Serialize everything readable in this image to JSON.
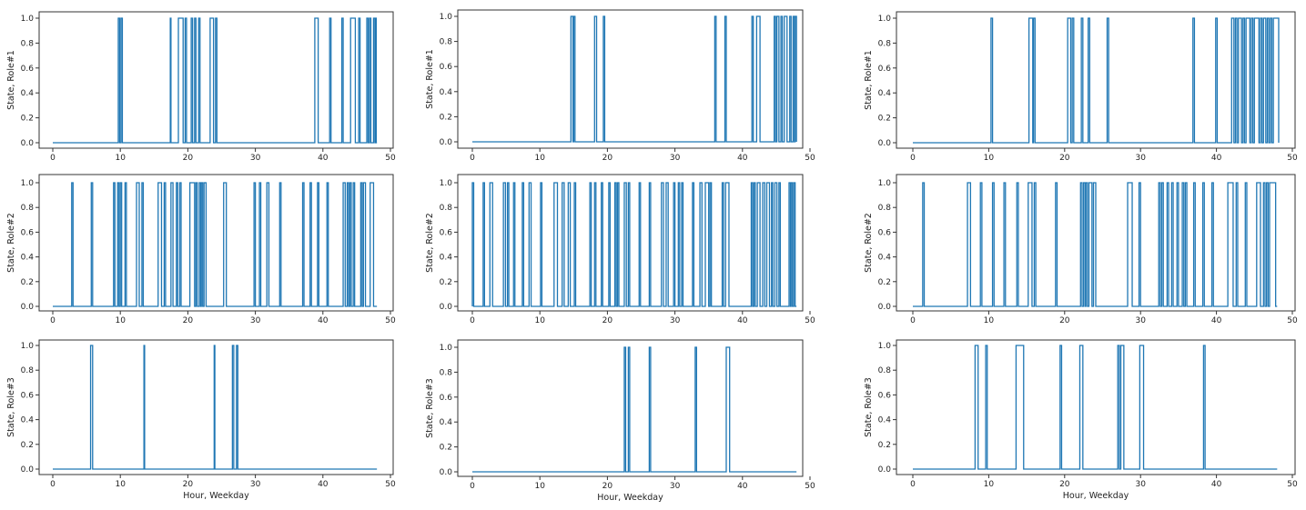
{
  "style": {
    "line_color": "#1f77b4",
    "axis_color": "#333333",
    "background": "#ffffff"
  },
  "chart_data": [
    {
      "type": "line",
      "step": "post",
      "ylabel": "State, Role#1",
      "xlabel": "",
      "xlim": [
        0,
        50
      ],
      "ylim": [
        0,
        1
      ],
      "xticks": [
        "0",
        "10",
        "20",
        "30",
        "40",
        "50"
      ],
      "yticks": [
        "0.0",
        "0.2",
        "0.4",
        "0.6",
        "0.8",
        "1.0"
      ],
      "grid": false,
      "series": [
        {
          "on_intervals": [
            [
              9.7,
              9.9
            ],
            [
              10.1,
              10.3
            ],
            [
              17.4,
              17.5
            ],
            [
              18.6,
              19.3
            ],
            [
              19.6,
              19.8
            ],
            [
              20.5,
              20.7
            ],
            [
              21.0,
              21.2
            ],
            [
              21.6,
              21.8
            ],
            [
              23.3,
              23.8
            ],
            [
              24.1,
              24.3
            ],
            [
              38.8,
              39.3
            ],
            [
              41.0,
              41.2
            ],
            [
              42.8,
              43.0
            ],
            [
              44.1,
              44.8
            ],
            [
              45.3,
              45.5
            ],
            [
              46.5,
              46.7
            ],
            [
              46.9,
              47.1
            ],
            [
              47.5,
              47.7
            ],
            [
              47.8,
              47.9
            ]
          ]
        }
      ]
    },
    {
      "type": "line",
      "step": "post",
      "ylabel": "State, Role#1",
      "xlabel": "",
      "xlim": [
        0,
        50
      ],
      "ylim": [
        0,
        1
      ],
      "xticks": [
        "0",
        "10",
        "20",
        "30",
        "40",
        "50"
      ],
      "yticks": [
        "0.0",
        "0.2",
        "0.4",
        "0.6",
        "0.8",
        "1.0"
      ],
      "grid": false,
      "series": [
        {
          "on_intervals": [
            [
              14.6,
              14.9
            ],
            [
              15.0,
              15.2
            ],
            [
              18.1,
              18.4
            ],
            [
              19.4,
              19.6
            ],
            [
              35.9,
              36.1
            ],
            [
              37.4,
              37.6
            ],
            [
              41.4,
              41.6
            ],
            [
              42.1,
              42.6
            ],
            [
              44.7,
              44.9
            ],
            [
              45.1,
              45.4
            ],
            [
              45.7,
              45.9
            ],
            [
              46.2,
              46.6
            ],
            [
              47.0,
              47.2
            ],
            [
              47.5,
              47.7
            ],
            [
              47.8,
              48.0
            ]
          ]
        }
      ]
    },
    {
      "type": "line",
      "step": "post",
      "ylabel": "State, Role#1",
      "xlabel": "",
      "xlim": [
        0,
        50
      ],
      "ylim": [
        0,
        1
      ],
      "xticks": [
        "0",
        "10",
        "20",
        "30",
        "40",
        "50"
      ],
      "yticks": [
        "0.0",
        "0.2",
        "0.4",
        "0.6",
        "0.8",
        "1.0"
      ],
      "grid": false,
      "series": [
        {
          "on_intervals": [
            [
              10.3,
              10.5
            ],
            [
              15.3,
              15.8
            ],
            [
              15.9,
              16.1
            ],
            [
              20.4,
              20.8
            ],
            [
              21.0,
              21.2
            ],
            [
              22.2,
              22.4
            ],
            [
              23.1,
              23.3
            ],
            [
              25.6,
              25.8
            ],
            [
              36.9,
              37.1
            ],
            [
              39.9,
              40.1
            ],
            [
              42.0,
              42.3
            ],
            [
              42.5,
              42.7
            ],
            [
              42.9,
              43.3
            ],
            [
              43.5,
              43.7
            ],
            [
              43.9,
              44.4
            ],
            [
              44.6,
              44.8
            ],
            [
              45.0,
              45.6
            ],
            [
              45.8,
              46.0
            ],
            [
              46.2,
              46.5
            ],
            [
              46.7,
              46.9
            ],
            [
              47.1,
              47.3
            ],
            [
              47.5,
              48.2
            ]
          ]
        }
      ]
    },
    {
      "type": "line",
      "step": "post",
      "ylabel": "State, Role#2",
      "xlabel": "",
      "xlim": [
        0,
        50
      ],
      "ylim": [
        0,
        1
      ],
      "xticks": [
        "0",
        "10",
        "20",
        "30",
        "40",
        "50"
      ],
      "yticks": [
        "0.0",
        "0.2",
        "0.4",
        "0.6",
        "0.8",
        "1.0"
      ],
      "grid": false,
      "series": [
        {
          "on_intervals": [
            [
              2.8,
              3.0
            ],
            [
              5.7,
              5.9
            ],
            [
              9.0,
              9.2
            ],
            [
              9.6,
              9.8
            ],
            [
              10.0,
              10.2
            ],
            [
              10.7,
              10.9
            ],
            [
              12.4,
              12.8
            ],
            [
              13.2,
              13.4
            ],
            [
              15.6,
              16.1
            ],
            [
              16.5,
              16.7
            ],
            [
              17.5,
              17.8
            ],
            [
              18.3,
              18.5
            ],
            [
              18.8,
              19.0
            ],
            [
              20.3,
              21.0
            ],
            [
              21.2,
              21.4
            ],
            [
              21.7,
              21.9
            ],
            [
              22.0,
              22.2
            ],
            [
              22.4,
              22.7
            ],
            [
              25.3,
              25.7
            ],
            [
              29.8,
              30.0
            ],
            [
              30.6,
              30.8
            ],
            [
              31.7,
              32.0
            ],
            [
              33.6,
              33.8
            ],
            [
              37.0,
              37.2
            ],
            [
              38.1,
              38.3
            ],
            [
              39.2,
              39.4
            ],
            [
              40.6,
              40.8
            ],
            [
              43.0,
              43.3
            ],
            [
              43.6,
              43.8
            ],
            [
              44.0,
              44.2
            ],
            [
              44.5,
              44.7
            ],
            [
              45.6,
              45.8
            ],
            [
              46.0,
              46.3
            ],
            [
              47.0,
              47.5
            ]
          ]
        }
      ]
    },
    {
      "type": "line",
      "step": "post",
      "ylabel": "State, Role#2",
      "xlabel": "",
      "xlim": [
        0,
        50
      ],
      "ylim": [
        0,
        1
      ],
      "xticks": [
        "0",
        "10",
        "20",
        "30",
        "40",
        "50"
      ],
      "yticks": [
        "0.0",
        "0.2",
        "0.4",
        "0.6",
        "0.8",
        "1.0"
      ],
      "grid": false,
      "series": [
        {
          "on_intervals": [
            [
              0.0,
              0.2
            ],
            [
              1.6,
              1.8
            ],
            [
              2.6,
              3.0
            ],
            [
              4.6,
              4.9
            ],
            [
              5.2,
              5.4
            ],
            [
              6.1,
              6.3
            ],
            [
              7.4,
              7.6
            ],
            [
              8.4,
              8.7
            ],
            [
              10.1,
              10.3
            ],
            [
              12.1,
              12.6
            ],
            [
              13.3,
              13.6
            ],
            [
              14.2,
              14.5
            ],
            [
              15.1,
              15.3
            ],
            [
              17.4,
              17.6
            ],
            [
              18.1,
              18.3
            ],
            [
              19.1,
              19.3
            ],
            [
              20.2,
              20.4
            ],
            [
              21.1,
              21.3
            ],
            [
              21.5,
              21.7
            ],
            [
              22.5,
              22.8
            ],
            [
              23.1,
              23.3
            ],
            [
              24.7,
              24.9
            ],
            [
              26.2,
              26.4
            ],
            [
              28.0,
              28.3
            ],
            [
              28.7,
              29.0
            ],
            [
              29.8,
              30.0
            ],
            [
              30.5,
              30.7
            ],
            [
              31.0,
              31.2
            ],
            [
              32.6,
              32.8
            ],
            [
              33.7,
              34.0
            ],
            [
              34.5,
              35.0
            ],
            [
              35.2,
              35.4
            ],
            [
              37.0,
              37.2
            ],
            [
              37.5,
              38.0
            ],
            [
              41.3,
              41.5
            ],
            [
              41.7,
              41.9
            ],
            [
              42.2,
              42.6
            ],
            [
              43.0,
              43.3
            ],
            [
              43.6,
              44.0
            ],
            [
              44.3,
              44.5
            ],
            [
              44.8,
              45.1
            ],
            [
              45.4,
              45.6
            ],
            [
              46.9,
              47.1
            ],
            [
              47.2,
              47.4
            ],
            [
              47.6,
              47.8
            ]
          ]
        }
      ]
    },
    {
      "type": "line",
      "step": "post",
      "ylabel": "State, Role#2",
      "xlabel": "",
      "xlim": [
        0,
        50
      ],
      "ylim": [
        0,
        1
      ],
      "xticks": [
        "0",
        "10",
        "20",
        "30",
        "40",
        "50"
      ],
      "yticks": [
        "0.0",
        "0.2",
        "0.4",
        "0.6",
        "0.8",
        "1.0"
      ],
      "grid": false,
      "series": [
        {
          "on_intervals": [
            [
              1.3,
              1.5
            ],
            [
              7.2,
              7.6
            ],
            [
              8.9,
              9.1
            ],
            [
              10.5,
              10.7
            ],
            [
              12.0,
              12.2
            ],
            [
              13.7,
              13.9
            ],
            [
              15.2,
              15.7
            ],
            [
              16.0,
              16.2
            ],
            [
              18.8,
              19.0
            ],
            [
              22.1,
              22.3
            ],
            [
              22.5,
              22.7
            ],
            [
              22.8,
              23.0
            ],
            [
              23.2,
              23.6
            ],
            [
              23.8,
              24.1
            ],
            [
              28.3,
              28.9
            ],
            [
              29.8,
              30.0
            ],
            [
              32.4,
              32.6
            ],
            [
              32.8,
              33.0
            ],
            [
              33.5,
              33.7
            ],
            [
              34.1,
              34.3
            ],
            [
              34.8,
              35.0
            ],
            [
              35.5,
              35.7
            ],
            [
              35.9,
              36.1
            ],
            [
              37.0,
              37.2
            ],
            [
              38.2,
              38.4
            ],
            [
              39.4,
              39.6
            ],
            [
              41.5,
              42.2
            ],
            [
              42.6,
              42.8
            ],
            [
              43.8,
              44.0
            ],
            [
              45.3,
              45.8
            ],
            [
              46.2,
              46.4
            ],
            [
              46.6,
              46.8
            ],
            [
              47.0,
              47.8
            ]
          ]
        }
      ]
    },
    {
      "type": "line",
      "step": "post",
      "ylabel": "State, Role#3",
      "xlabel": "Hour, Weekday",
      "xlim": [
        0,
        50
      ],
      "ylim": [
        0,
        1
      ],
      "xticks": [
        "0",
        "10",
        "20",
        "30",
        "40",
        "50"
      ],
      "yticks": [
        "0.0",
        "0.2",
        "0.4",
        "0.6",
        "0.8",
        "1.0"
      ],
      "grid": false,
      "series": [
        {
          "on_intervals": [
            [
              5.6,
              5.9
            ],
            [
              13.5,
              13.6
            ],
            [
              23.9,
              24.0
            ],
            [
              26.6,
              26.8
            ],
            [
              27.2,
              27.4
            ]
          ]
        }
      ]
    },
    {
      "type": "line",
      "step": "post",
      "ylabel": "State, Role#3",
      "xlabel": "Hour, Weekday",
      "xlim": [
        0,
        50
      ],
      "ylim": [
        0,
        1
      ],
      "xticks": [
        "0",
        "10",
        "20",
        "30",
        "40",
        "50"
      ],
      "yticks": [
        "0.0",
        "0.2",
        "0.4",
        "0.6",
        "0.8",
        "1.0"
      ],
      "grid": false,
      "series": [
        {
          "on_intervals": [
            [
              22.5,
              22.7
            ],
            [
              23.1,
              23.3
            ],
            [
              26.2,
              26.4
            ],
            [
              33.0,
              33.2
            ],
            [
              37.6,
              38.1
            ]
          ]
        }
      ]
    },
    {
      "type": "line",
      "step": "post",
      "ylabel": "State, Role#3",
      "xlabel": "Hour, Weekday",
      "xlim": [
        0,
        50
      ],
      "ylim": [
        0,
        1
      ],
      "xticks": [
        "0",
        "10",
        "20",
        "30",
        "40",
        "50"
      ],
      "yticks": [
        "0.0",
        "0.2",
        "0.4",
        "0.6",
        "0.8",
        "1.0"
      ],
      "grid": false,
      "series": [
        {
          "on_intervals": [
            [
              8.2,
              8.6
            ],
            [
              9.6,
              9.8
            ],
            [
              13.6,
              14.6
            ],
            [
              19.4,
              19.6
            ],
            [
              22.0,
              22.4
            ],
            [
              27.0,
              27.2
            ],
            [
              27.4,
              27.8
            ],
            [
              29.9,
              30.4
            ],
            [
              38.3,
              38.5
            ]
          ]
        }
      ]
    }
  ]
}
